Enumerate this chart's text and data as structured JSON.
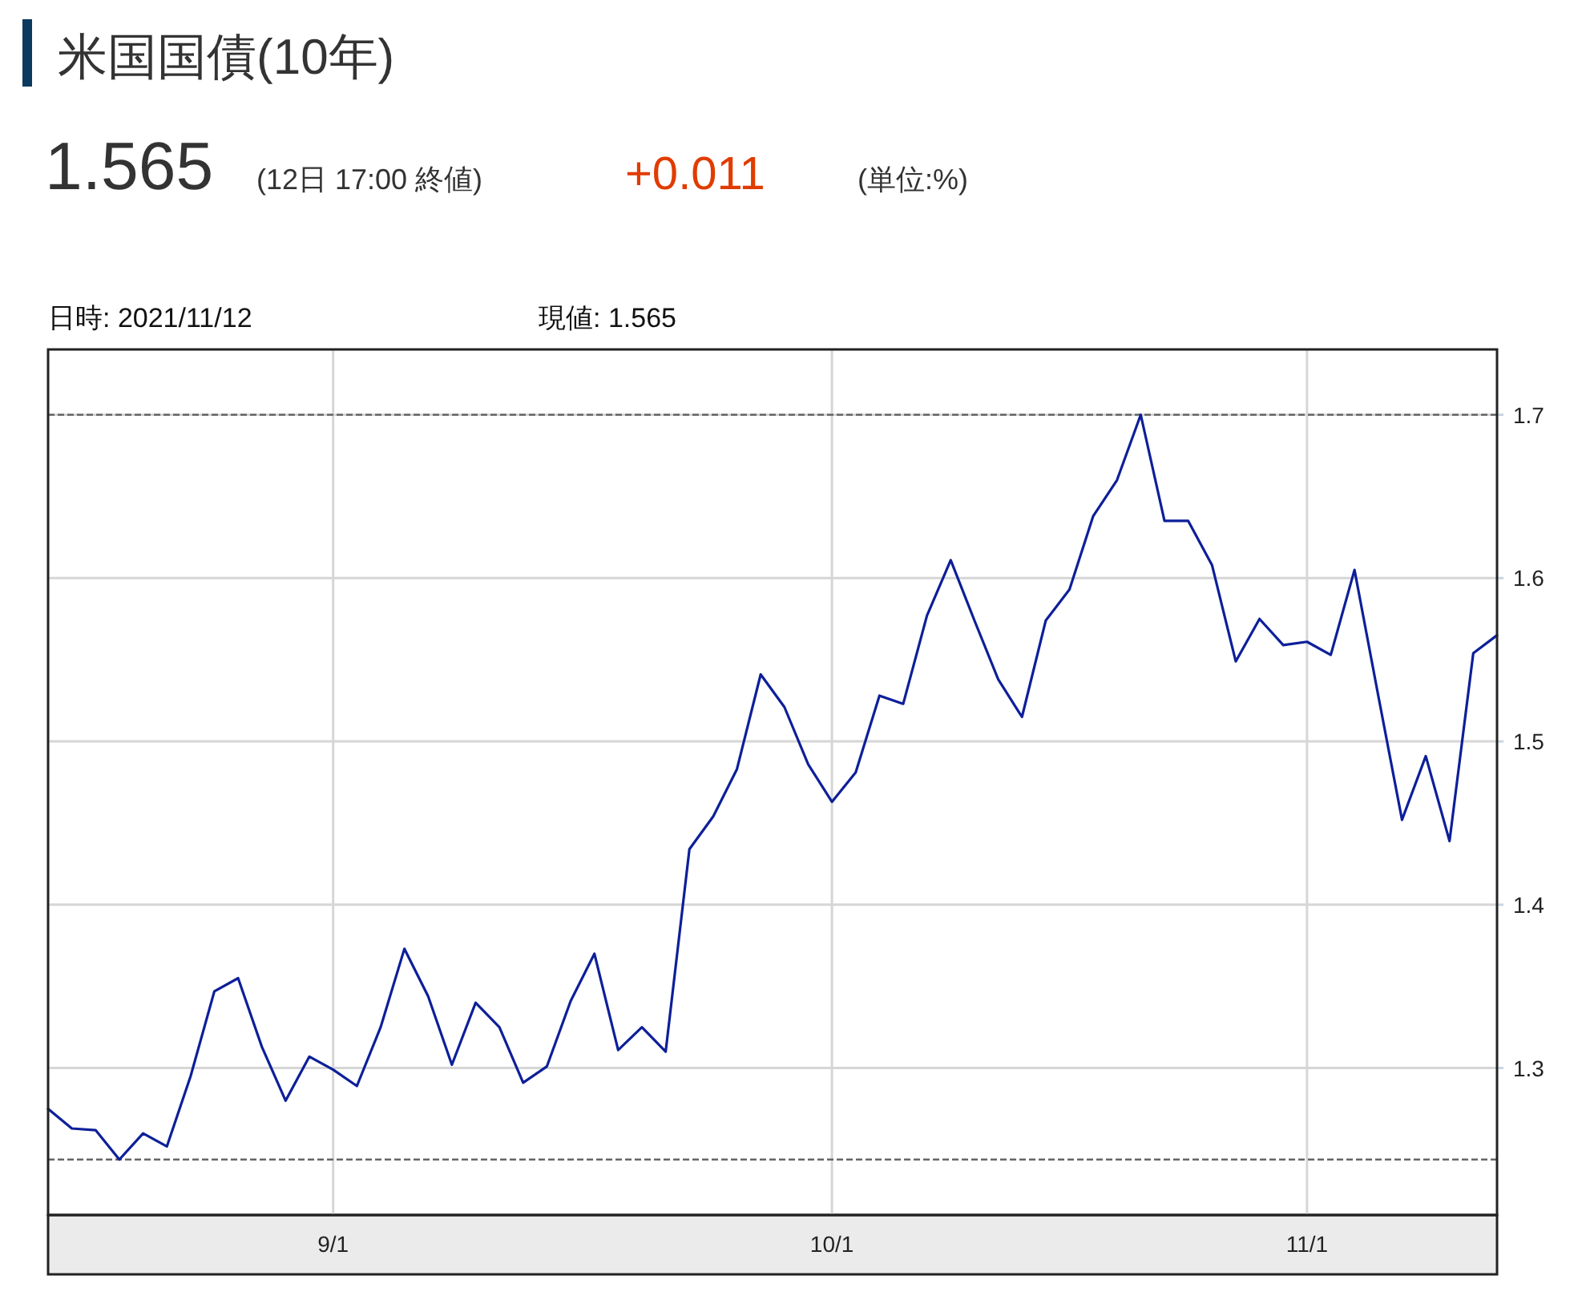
{
  "chart_data": {
    "type": "line",
    "title": "米国国債(10年)",
    "annotations": [
      "1.565",
      "(12日 17:00 終値)",
      "+0.011",
      "(単位:%)",
      "日時: 2021/11/12",
      "現値: 1.565"
    ],
    "categories": [
      null,
      null,
      null,
      null,
      null,
      null,
      null,
      null,
      null,
      null,
      null,
      null,
      "9/1",
      null,
      null,
      null,
      null,
      null,
      null,
      null,
      null,
      null,
      null,
      null,
      null,
      null,
      null,
      null,
      null,
      null,
      null,
      null,
      null,
      "10/1",
      null,
      null,
      null,
      null,
      null,
      null,
      null,
      null,
      null,
      null,
      null,
      null,
      null,
      null,
      null,
      null,
      null,
      null,
      null,
      "11/1",
      null,
      null,
      null,
      null,
      null,
      null,
      null,
      null
    ],
    "series": [
      {
        "color": "#0d1f99",
        "values": [
          1.275,
          1.263,
          1.262,
          1.244,
          1.26,
          1.252,
          1.295,
          1.347,
          1.355,
          1.313,
          1.28,
          1.307,
          1.299,
          1.289,
          1.325,
          1.373,
          1.344,
          1.302,
          1.34,
          1.325,
          1.291,
          1.301,
          1.341,
          1.37,
          1.311,
          1.325,
          1.31,
          1.434,
          1.454,
          1.483,
          1.541,
          1.521,
          1.486,
          1.463,
          1.481,
          1.528,
          1.523,
          1.577,
          1.611,
          1.574,
          1.538,
          1.515,
          1.574,
          1.593,
          1.638,
          1.66,
          1.7,
          1.635,
          1.635,
          1.608,
          1.549,
          1.575,
          1.559,
          1.561,
          1.553,
          1.605,
          1.528,
          1.452,
          1.491,
          1.439,
          1.554,
          1.565
        ]
      }
    ],
    "ylim": [
      1.21,
      1.74
    ],
    "yticks": [
      1.3,
      1.4,
      1.5,
      1.6,
      1.7
    ],
    "grid": true,
    "ref_lines": [
      {
        "axis": "y",
        "value": 1.7,
        "line_style": "dashed",
        "color": "#666666"
      },
      {
        "axis": "y",
        "value": 1.244,
        "line_style": "dashed",
        "color": "#666666"
      }
    ]
  }
}
